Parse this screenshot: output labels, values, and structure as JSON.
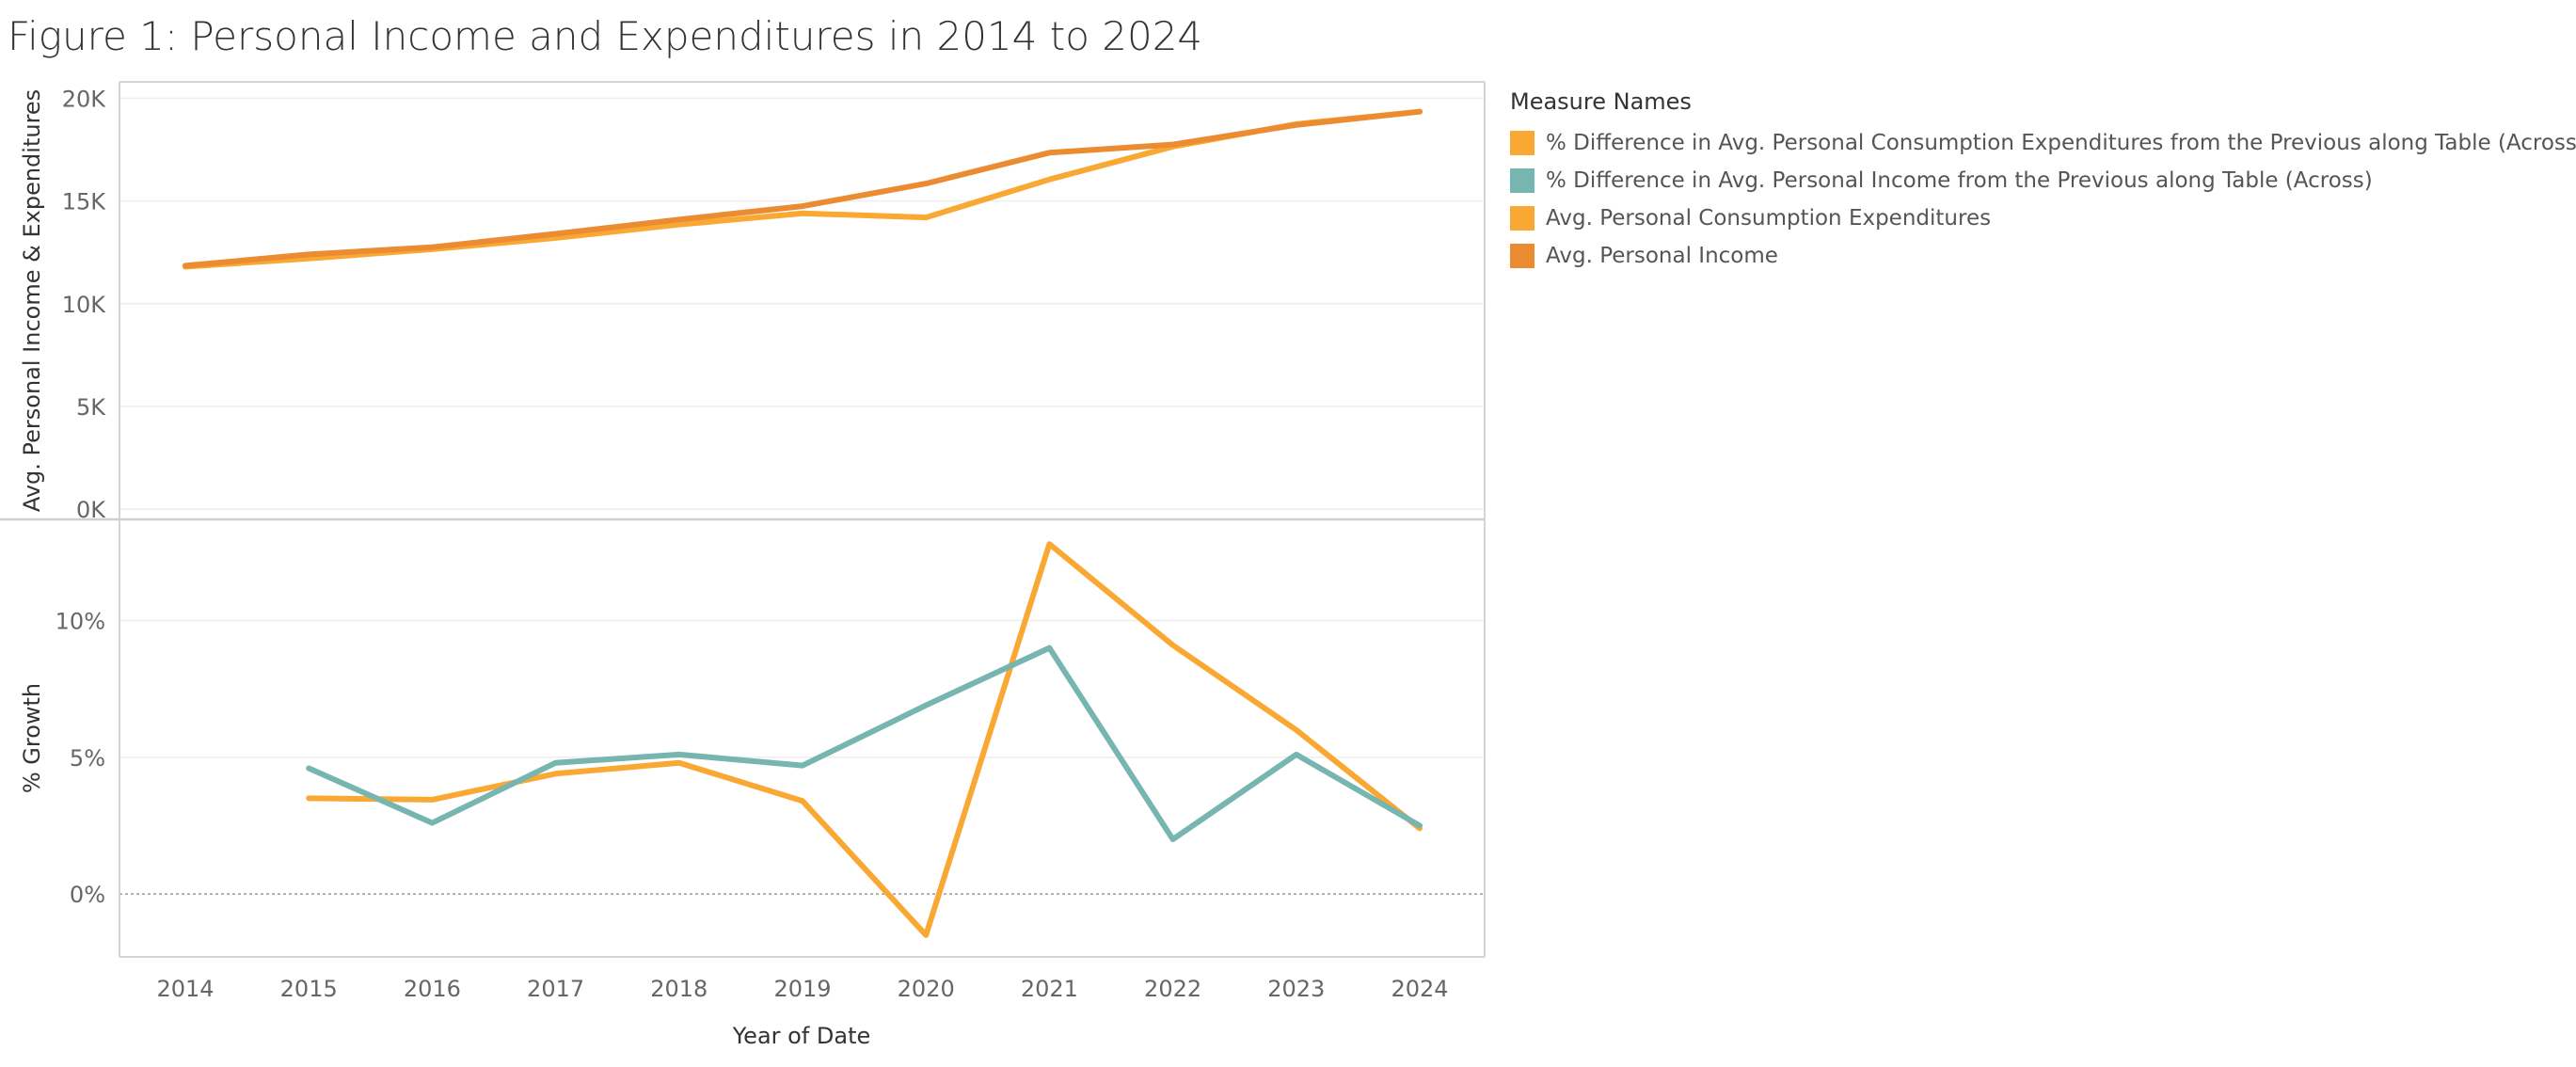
{
  "chart_data": {
    "type": "line",
    "title": "Figure 1: Personal Income and Expenditures in 2014 to 2024",
    "xlabel": "Year of Date",
    "x": [
      "2014",
      "2015",
      "2016",
      "2017",
      "2018",
      "2019",
      "2020",
      "2021",
      "2022",
      "2023",
      "2024"
    ],
    "legend": {
      "title": "Measure Names",
      "placement": "right",
      "entries": [
        {
          "label": "% Difference in Avg. Personal Consumption Expenditures from the Previous along Table (Across)",
          "color": "#F9A933"
        },
        {
          "label": "% Difference in Avg. Personal Income from the Previous along Table (Across)",
          "color": "#76B5B0"
        },
        {
          "label": "Avg. Personal Consumption Expenditures",
          "color": "#F9A933"
        },
        {
          "label": "Avg. Personal Income",
          "color": "#EB8B32"
        }
      ]
    },
    "panes": [
      {
        "ylabel": "Avg. Personal Income & Expenditures",
        "ylim": [
          -500,
          20800
        ],
        "yticks": [
          0,
          5000,
          10000,
          15000,
          20000
        ],
        "ytick_labels": [
          "0K",
          "5K",
          "10K",
          "15K",
          "20K"
        ],
        "grid": true,
        "series": [
          {
            "name": "Avg. Personal Consumption Expenditures",
            "color": "#F9A933",
            "values": [
              11800,
              12200,
              12650,
              13200,
              13850,
              14400,
              14200,
              16050,
              17650,
              18750,
              19350
            ]
          },
          {
            "name": "Avg. Personal Income",
            "color": "#EB8B32",
            "values": [
              11850,
              12400,
              12750,
              13400,
              14100,
              14750,
              15850,
              17350,
              17750,
              18700,
              19350
            ]
          }
        ]
      },
      {
        "ylabel": "% Growth",
        "ylim": [
          -2.3,
          13.7
        ],
        "yticks": [
          0,
          5,
          10
        ],
        "ytick_labels": [
          "0%",
          "5%",
          "10%"
        ],
        "grid": true,
        "zero_line": true,
        "series": [
          {
            "name": "% Difference in Avg. Personal Consumption Expenditures from the Previous along Table (Across)",
            "color": "#F9A933",
            "values": [
              null,
              3.5,
              3.45,
              4.4,
              4.8,
              3.4,
              -1.5,
              12.8,
              9.1,
              6.0,
              2.4
            ]
          },
          {
            "name": "% Difference in Avg. Personal Income from the Previous along Table (Across)",
            "color": "#76B5B0",
            "values": [
              null,
              4.6,
              2.6,
              4.8,
              5.1,
              4.7,
              6.9,
              9.0,
              2.0,
              5.1,
              2.5
            ]
          }
        ]
      }
    ]
  }
}
